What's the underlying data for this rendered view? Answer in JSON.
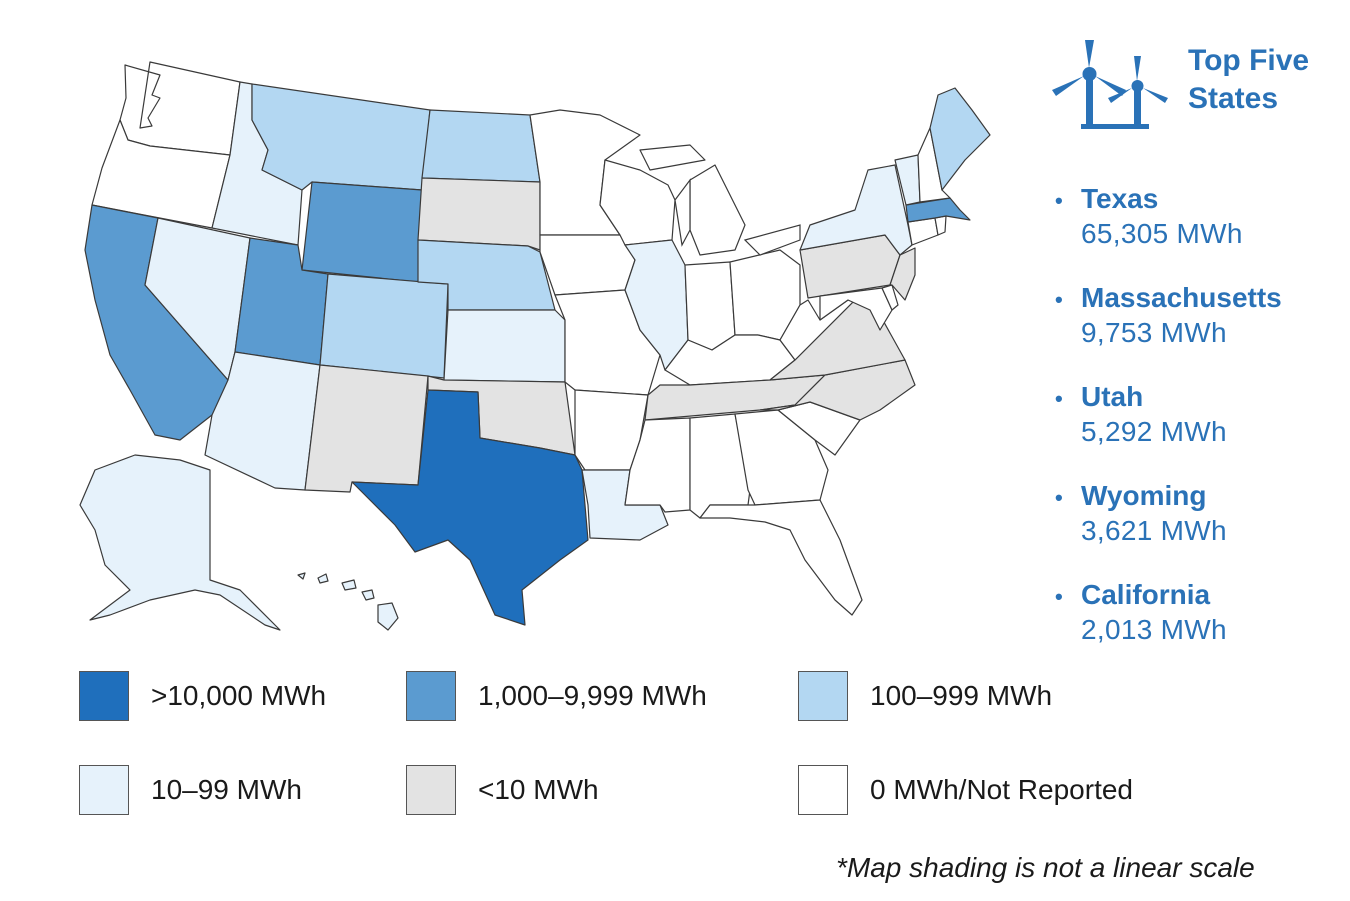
{
  "panel": {
    "title": "Top Five States"
  },
  "top_states": [
    {
      "name": "Texas",
      "value": "65,305 MWh"
    },
    {
      "name": "Massachusetts",
      "value": "9,753 MWh"
    },
    {
      "name": "Utah",
      "value": "5,292 MWh"
    },
    {
      "name": "Wyoming",
      "value": "3,621 MWh"
    },
    {
      "name": "California",
      "value": "2,013 MWh"
    }
  ],
  "legend": [
    {
      "label": ">10,000 MWh",
      "color": "#1f6fbc"
    },
    {
      "label": "1,000–9,999 MWh",
      "color": "#5b9bd0"
    },
    {
      "label": "100–999 MWh",
      "color": "#b3d7f2"
    },
    {
      "label": "10–99 MWh",
      "color": "#e6f2fb"
    },
    {
      "label": "<10 MWh",
      "color": "#e3e3e3"
    },
    {
      "label": "0 MWh/Not Reported",
      "color": "#ffffff"
    }
  ],
  "footnote": "*Map shading is not a linear scale",
  "icon": "wind-turbines-icon",
  "map": {
    "regions": [
      {
        "name": "Washington",
        "category": 5
      },
      {
        "name": "Oregon",
        "category": 5
      },
      {
        "name": "California",
        "category": 1
      },
      {
        "name": "Nevada",
        "category": 3
      },
      {
        "name": "Idaho",
        "category": 3
      },
      {
        "name": "Montana",
        "category": 2
      },
      {
        "name": "Wyoming",
        "category": 1
      },
      {
        "name": "Utah",
        "category": 1
      },
      {
        "name": "Arizona",
        "category": 3
      },
      {
        "name": "Colorado",
        "category": 2
      },
      {
        "name": "New Mexico",
        "category": 4
      },
      {
        "name": "North Dakota",
        "category": 2
      },
      {
        "name": "South Dakota",
        "category": 4
      },
      {
        "name": "Nebraska",
        "category": 2
      },
      {
        "name": "Kansas",
        "category": 3
      },
      {
        "name": "Oklahoma",
        "category": 4
      },
      {
        "name": "Texas",
        "category": 0
      },
      {
        "name": "Minnesota",
        "category": 5
      },
      {
        "name": "Iowa",
        "category": 5
      },
      {
        "name": "Missouri",
        "category": 5
      },
      {
        "name": "Arkansas",
        "category": 5
      },
      {
        "name": "Louisiana",
        "category": 3
      },
      {
        "name": "Wisconsin",
        "category": 5
      },
      {
        "name": "Illinois",
        "category": 3
      },
      {
        "name": "Michigan",
        "category": 5
      },
      {
        "name": "Indiana",
        "category": 5
      },
      {
        "name": "Ohio",
        "category": 5
      },
      {
        "name": "Kentucky",
        "category": 5
      },
      {
        "name": "Tennessee",
        "category": 4
      },
      {
        "name": "Mississippi",
        "category": 5
      },
      {
        "name": "Alabama",
        "category": 5
      },
      {
        "name": "Georgia",
        "category": 5
      },
      {
        "name": "Florida",
        "category": 5
      },
      {
        "name": "South Carolina",
        "category": 5
      },
      {
        "name": "North Carolina",
        "category": 4
      },
      {
        "name": "Virginia",
        "category": 4
      },
      {
        "name": "West Virginia",
        "category": 5
      },
      {
        "name": "Pennsylvania",
        "category": 4
      },
      {
        "name": "New York",
        "category": 3
      },
      {
        "name": "New Jersey",
        "category": 4
      },
      {
        "name": "Delaware",
        "category": 5
      },
      {
        "name": "Maryland",
        "category": 5
      },
      {
        "name": "Connecticut",
        "category": 5
      },
      {
        "name": "Rhode Island",
        "category": 5
      },
      {
        "name": "Massachusetts",
        "category": 1
      },
      {
        "name": "Vermont",
        "category": 3
      },
      {
        "name": "New Hampshire",
        "category": 5
      },
      {
        "name": "Maine",
        "category": 2
      },
      {
        "name": "Alaska",
        "category": 3
      },
      {
        "name": "Hawaii",
        "category": 3
      }
    ]
  }
}
